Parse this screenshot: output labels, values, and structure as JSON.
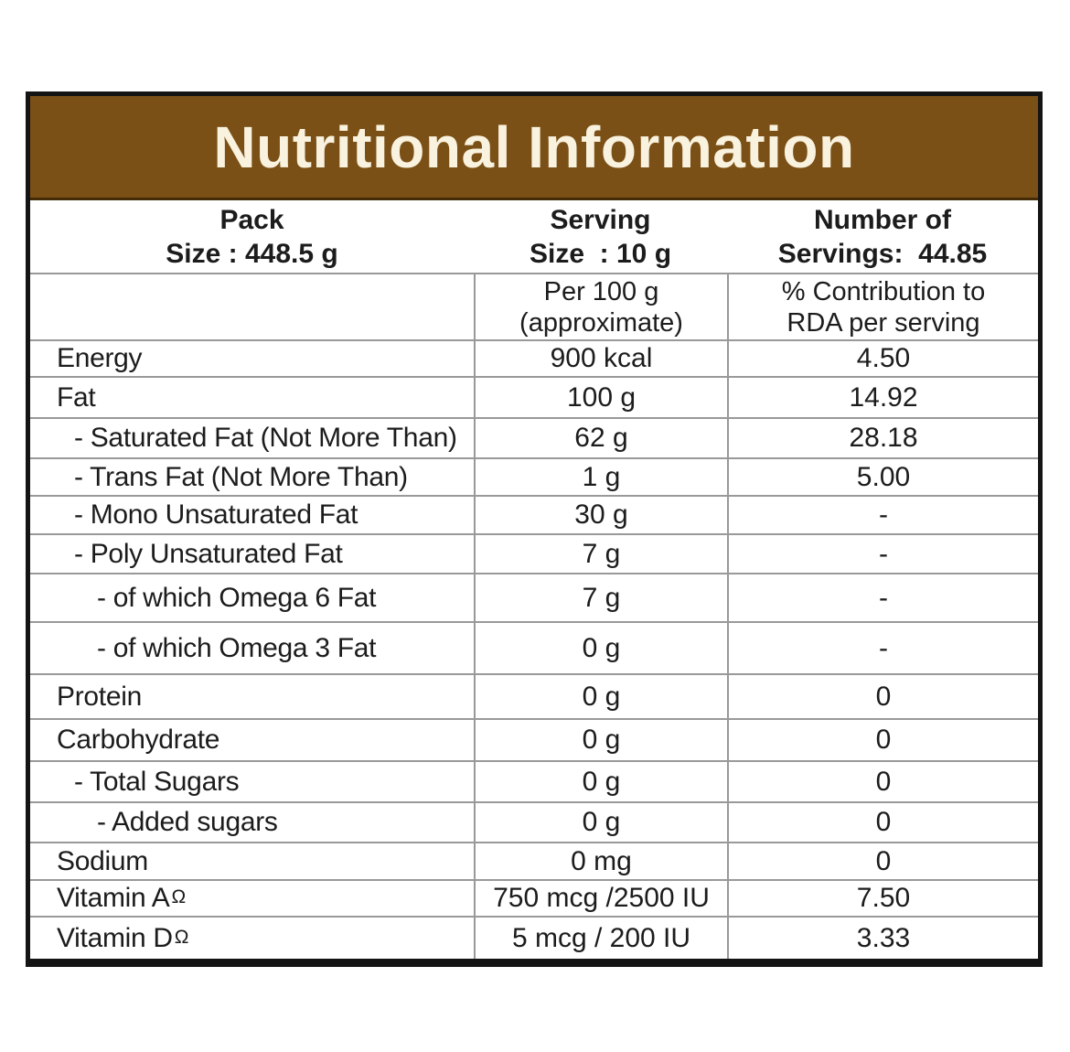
{
  "title": "Nutritional Information",
  "colors": {
    "header_bg": "#7B5016",
    "header_text": "#F8F2DF"
  },
  "pack_info": {
    "pack_line1": "Pack",
    "pack_line2": "Size : 448.5 g",
    "serving_line1": "Serving",
    "serving_line2": "Size  : 10 g",
    "servings_line1": "Number of",
    "servings_line2": "Servings:  44.85"
  },
  "column_headers": {
    "per100_line1": "Per 100 g",
    "per100_line2": "(approximate)",
    "rda_line1": "% Contribution to",
    "rda_line2": "RDA per serving"
  },
  "rows": [
    {
      "name": "Energy",
      "indent": 0,
      "per100": "900 kcal",
      "rda": "4.50"
    },
    {
      "name": "Fat",
      "indent": 0,
      "per100": "100 g",
      "rda": "14.92"
    },
    {
      "name": "- Saturated Fat (Not More Than)",
      "indent": 1,
      "per100": "62 g",
      "rda": "28.18"
    },
    {
      "name": "- Trans Fat (Not More Than)",
      "indent": 1,
      "per100": "1 g",
      "rda": "5.00"
    },
    {
      "name": "- Mono Unsaturated Fat",
      "indent": 1,
      "per100": "30 g",
      "rda": "-"
    },
    {
      "name": "- Poly Unsaturated Fat",
      "indent": 1,
      "per100": "7 g",
      "rda": "-"
    },
    {
      "name": "- of which Omega 6 Fat",
      "indent": 2,
      "per100": "7 g",
      "rda": "-"
    },
    {
      "name": "- of which Omega 3 Fat",
      "indent": 2,
      "per100": "0 g",
      "rda": "-"
    },
    {
      "name": "Protein",
      "indent": 0,
      "per100": "0 g",
      "rda": "0"
    },
    {
      "name": "Carbohydrate",
      "indent": 0,
      "per100": "0 g",
      "rda": "0"
    },
    {
      "name": "- Total Sugars",
      "indent": 1,
      "per100": "0 g",
      "rda": "0"
    },
    {
      "name": "- Added sugars",
      "indent": 2,
      "per100": "0 g",
      "rda": "0"
    },
    {
      "name": "Sodium",
      "indent": 0,
      "per100": "0 mg",
      "rda": "0"
    },
    {
      "name": "Vitamin A",
      "sup": "Ω",
      "indent": 0,
      "per100": "750 mcg /2500 IU",
      "rda": "7.50"
    },
    {
      "name": "Vitamin D",
      "sup": "Ω",
      "indent": 0,
      "per100": "5 mcg / 200 IU",
      "rda": "3.33"
    }
  ]
}
